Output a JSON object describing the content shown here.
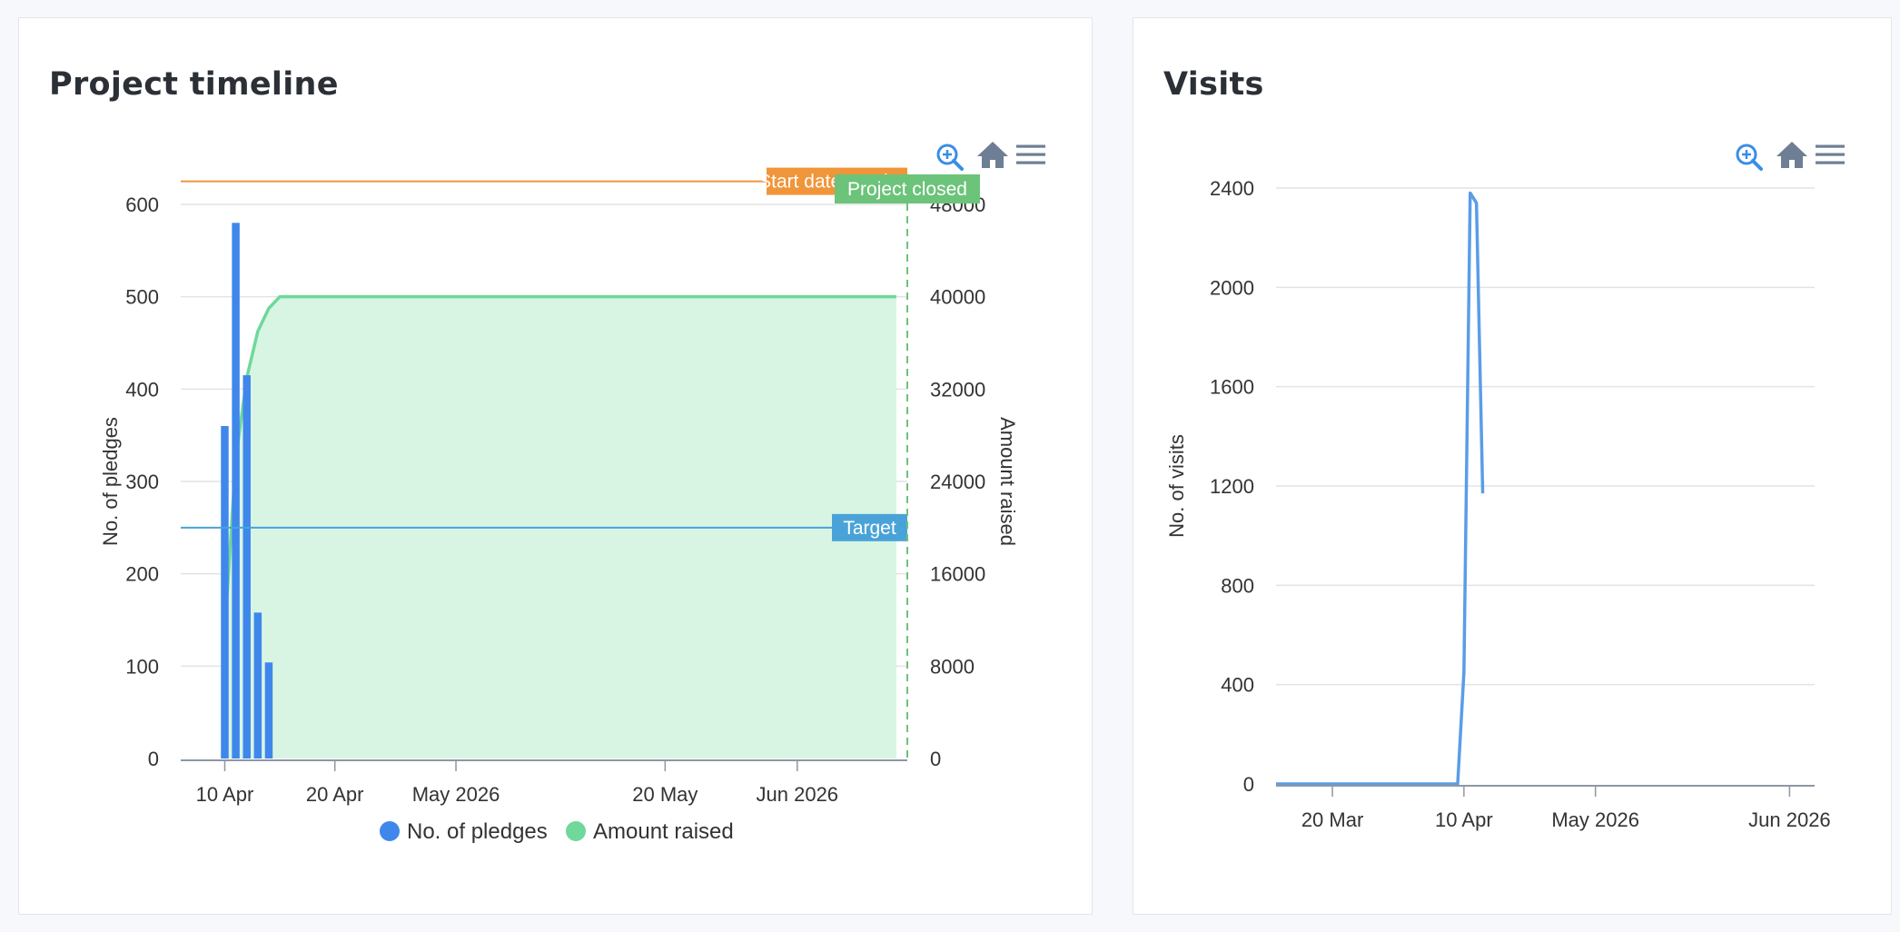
{
  "colors": {
    "pledges": "#3f87eb",
    "amount": "#6fd89a",
    "amount_fill": "#d8f5e4",
    "target": "#4aa3d8",
    "closed": "#6cc37a",
    "start": "#f0953a",
    "visits": "#5a9de6",
    "toolbar": "#6e7f95",
    "zoom": "#3a8de6"
  },
  "timeline": {
    "title": "Project timeline",
    "toolbar": {
      "zoom_icon": "zoom-in-icon",
      "home_icon": "home-icon",
      "menu_icon": "menu-icon"
    },
    "chart_data": {
      "type": "bar",
      "title": "Project timeline",
      "xlabel": "",
      "ylabel": "No. of pledges",
      "y2label": "Amount raised",
      "x_axis_type": "date",
      "x_ticks": [
        {
          "label": "10 Apr",
          "date": "2026-04-10"
        },
        {
          "label": "20 Apr",
          "date": "2026-04-20"
        },
        {
          "label": "May 2026",
          "date": "2026-05-01"
        },
        {
          "label": "20 May",
          "date": "2026-05-20"
        },
        {
          "label": "Jun 2026",
          "date": "2026-06-01"
        }
      ],
      "x_range": [
        "2026-04-06",
        "2026-06-11"
      ],
      "ylim": [
        0,
        600
      ],
      "y_ticks": [
        "0",
        "100",
        "200",
        "300",
        "400",
        "500",
        "600"
      ],
      "y2lim": [
        0,
        48000
      ],
      "y2_ticks": [
        "0",
        "8000",
        "16000",
        "24000",
        "32000",
        "40000",
        "48000"
      ],
      "series": [
        {
          "name": "No. of pledges",
          "type": "bar",
          "axis": "left",
          "points": [
            {
              "date": "2026-04-10",
              "value": 360
            },
            {
              "date": "2026-04-11",
              "value": 580
            },
            {
              "date": "2026-04-12",
              "value": 415
            },
            {
              "date": "2026-04-13",
              "value": 158
            },
            {
              "date": "2026-04-14",
              "value": 104
            }
          ]
        },
        {
          "name": "Amount raised",
          "type": "area",
          "axis": "right",
          "points": [
            {
              "date": "2026-04-10",
              "value": 11000
            },
            {
              "date": "2026-04-11",
              "value": 26000
            },
            {
              "date": "2026-04-12",
              "value": 33000
            },
            {
              "date": "2026-04-13",
              "value": 37000
            },
            {
              "date": "2026-04-14",
              "value": 39000
            },
            {
              "date": "2026-04-15",
              "value": 40000
            },
            {
              "date": "2026-06-10",
              "value": 40000
            }
          ]
        }
      ],
      "annotations": [
        {
          "type": "hline",
          "label": "Start date reached",
          "axis": "left",
          "value": 625
        },
        {
          "type": "hline",
          "label": "Target",
          "axis": "left",
          "value": 250
        },
        {
          "type": "vline",
          "label": "Project closed",
          "date": "2026-06-11"
        }
      ],
      "legend": [
        "No. of pledges",
        "Amount raised"
      ],
      "legend_position": "bottom",
      "grid": true
    }
  },
  "visits": {
    "title": "Visits",
    "toolbar": {
      "zoom_icon": "zoom-in-icon",
      "home_icon": "home-icon",
      "menu_icon": "menu-icon"
    },
    "chart_data": {
      "type": "line",
      "title": "Visits",
      "xlabel": "",
      "ylabel": "No. of visits",
      "x_axis_type": "date",
      "x_ticks": [
        {
          "label": "20 Mar",
          "date": "2026-03-20"
        },
        {
          "label": "10 Apr",
          "date": "2026-04-10"
        },
        {
          "label": "May 2026",
          "date": "2026-05-01"
        },
        {
          "label": "Jun 2026",
          "date": "2026-06-01"
        }
      ],
      "x_range": [
        "2026-03-11",
        "2026-06-05"
      ],
      "ylim": [
        0,
        2400
      ],
      "y_ticks": [
        "0",
        "400",
        "800",
        "1200",
        "1600",
        "2000",
        "2400"
      ],
      "series": [
        {
          "name": "No. of visits",
          "points": [
            {
              "date": "2026-03-11",
              "value": 0
            },
            {
              "date": "2026-04-09",
              "value": 0
            },
            {
              "date": "2026-04-10",
              "value": 450
            },
            {
              "date": "2026-04-11",
              "value": 2380
            },
            {
              "date": "2026-04-12",
              "value": 2340
            },
            {
              "date": "2026-04-13",
              "value": 1170
            }
          ]
        }
      ],
      "grid": true
    }
  }
}
